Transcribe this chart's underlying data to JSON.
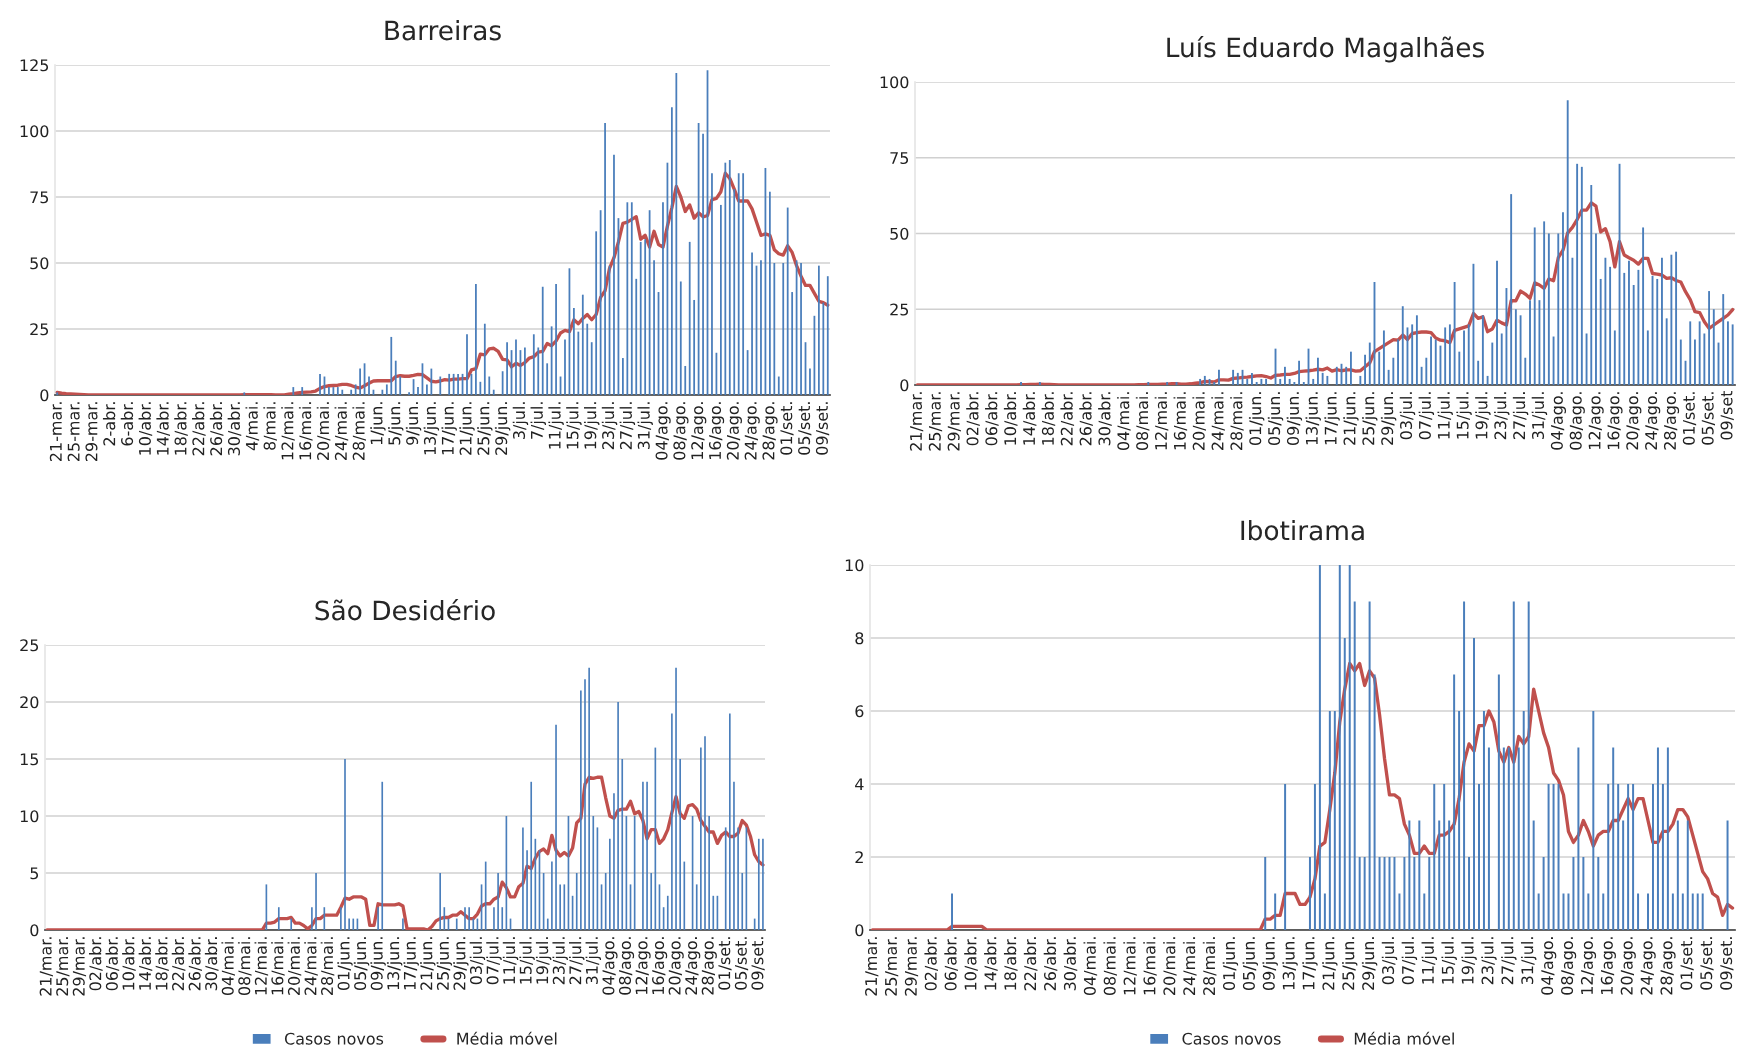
{
  "chart_data": [
    {
      "type": "bar",
      "title": "Barreiras",
      "grid": "y",
      "ylim": [
        0,
        125
      ],
      "yticks": [
        0,
        25,
        50,
        75,
        100,
        125
      ],
      "categories": [
        "21-mar.",
        null,
        null,
        null,
        "25-mar.",
        null,
        null,
        null,
        "29-mar.",
        null,
        null,
        null,
        "2-abr.",
        null,
        null,
        null,
        "6-abr.",
        null,
        null,
        null,
        "10/abr.",
        null,
        null,
        null,
        "14/abr.",
        null,
        null,
        null,
        "18/abr.",
        null,
        null,
        null,
        "22/abr.",
        null,
        null,
        null,
        "26/abr.",
        null,
        null,
        null,
        "30/abr.",
        null,
        null,
        null,
        "4/mai.",
        null,
        null,
        null,
        "8/mai.",
        null,
        null,
        null,
        "12/mai.",
        null,
        null,
        null,
        "16/mai.",
        null,
        null,
        null,
        "20/mai.",
        null,
        null,
        null,
        "24/mai.",
        null,
        null,
        null,
        "28/mai.",
        null,
        null,
        null,
        "1/jun.",
        null,
        null,
        null,
        "5/jun.",
        null,
        null,
        null,
        "9/jun.",
        null,
        null,
        null,
        "13/jun.",
        null,
        null,
        null,
        "17/jun.",
        null,
        null,
        null,
        "21/jun.",
        null,
        null,
        null,
        "25/jun.",
        null,
        null,
        null,
        "29/jun.",
        null,
        null,
        null,
        "3/jul.",
        null,
        null,
        null,
        "7/jul.",
        null,
        null,
        null,
        "11/jul.",
        null,
        null,
        null,
        "15/jul.",
        null,
        null,
        null,
        "19/jul.",
        null,
        null,
        null,
        "23/jul.",
        null,
        null,
        null,
        "27/jul.",
        null,
        null,
        null,
        "31/jul.",
        null,
        null,
        null,
        "04/ago.",
        null,
        null,
        null,
        "08/ago.",
        null,
        null,
        null,
        "12/ago.",
        null,
        null,
        null,
        "16/ago.",
        null,
        null,
        null,
        "20/ago.",
        null,
        null,
        null,
        "24/ago.",
        null,
        null,
        null,
        "28/ago.",
        null,
        null,
        null,
        "01/set.",
        null,
        null,
        null,
        "05/set.",
        null,
        null,
        null,
        "09/set.",
        null
      ],
      "series": [
        {
          "type": "bar",
          "color": "#4a7ebb",
          "values": [
            1,
            0,
            0,
            0,
            0,
            0,
            0,
            0,
            0,
            0,
            0,
            0,
            0,
            0,
            0,
            0,
            0,
            0,
            0,
            0,
            0,
            0,
            0,
            0,
            0,
            0,
            0,
            0,
            0,
            0,
            0,
            0,
            0,
            0,
            0,
            0,
            0,
            0,
            0,
            0,
            0,
            0,
            1,
            0,
            0,
            0,
            0,
            0,
            0,
            0,
            0,
            0,
            0,
            3,
            0,
            3,
            0,
            0,
            0,
            8,
            7,
            3,
            3,
            3,
            2,
            0,
            2,
            4,
            10,
            12,
            7,
            2,
            0,
            2,
            4,
            22,
            13,
            7,
            0,
            1,
            6,
            3,
            12,
            4,
            10,
            0,
            7,
            0,
            8,
            8,
            8,
            8,
            23,
            8,
            42,
            5,
            27,
            7,
            2,
            0,
            9,
            20,
            17,
            21,
            17,
            18,
            0,
            23,
            18,
            41,
            12,
            26,
            42,
            7,
            21,
            48,
            33,
            24,
            38,
            27,
            20,
            62,
            70,
            103,
            49,
            91,
            67,
            14,
            73,
            73,
            44,
            58,
            59,
            70,
            51,
            39,
            73,
            88,
            109,
            122,
            43,
            11,
            58,
            36,
            103,
            99,
            123,
            84,
            16,
            72,
            88,
            89,
            78,
            84,
            84,
            17,
            54,
            49,
            51,
            86,
            77,
            50,
            7,
            50,
            71,
            39,
            51,
            50,
            20,
            10,
            30,
            49,
            35,
            45
          ]
        },
        {
          "type": "line",
          "color": "#c0504d",
          "values": [
            1,
            0.7,
            0.5,
            0.4,
            0.3,
            0.2,
            0.1,
            0,
            0,
            0,
            0,
            0,
            0,
            0,
            0,
            0,
            0,
            0,
            0,
            0,
            0,
            0,
            0,
            0,
            0,
            0,
            0,
            0,
            0,
            0,
            0,
            0,
            0,
            0,
            0,
            0,
            0,
            0,
            0,
            0,
            0,
            0,
            0.1,
            0.1,
            0.1,
            0.1,
            0.1,
            0.1,
            0.1,
            0,
            0,
            0,
            0.3,
            0.5,
            0.8,
            1,
            1.1,
            1.2,
            1.5,
            2.5,
            3.2,
            3.5,
            3.6,
            3.7,
            4,
            4,
            3.6,
            3,
            2.6,
            3.5,
            4.5,
            5.3,
            5.4,
            5.4,
            5.4,
            5.4,
            7,
            7.3,
            7.1,
            7.1,
            7.4,
            7.8,
            7.7,
            6.5,
            5.2,
            5,
            5.3,
            5.8,
            5.6,
            6,
            6,
            6.2,
            6.2,
            9.5,
            10,
            15.5,
            15.2,
            17.5,
            17.7,
            16.5,
            13.5,
            13.3,
            10.7,
            12,
            11.2,
            12.3,
            14,
            14.5,
            16.2,
            16.5,
            19.5,
            18.7,
            20.5,
            23.5,
            24.5,
            24,
            28.5,
            27,
            29,
            30.5,
            28.5,
            30.5,
            37,
            39.5,
            48,
            52,
            58,
            65,
            65.5,
            66.5,
            67.5,
            59,
            60.5,
            56,
            62,
            57,
            56,
            64,
            71,
            79,
            75,
            69.5,
            72,
            67,
            69,
            67.5,
            68,
            74,
            74.5,
            77,
            84,
            82,
            78,
            73.5,
            73.5,
            73.5,
            70.5,
            65.5,
            60.5,
            61,
            60.5,
            55,
            53.5,
            53,
            56.5,
            54,
            49,
            45,
            41.5,
            41.5,
            38.5,
            35.5,
            35,
            34
          ]
        }
      ]
    },
    {
      "type": "bar",
      "title": "Luís Eduardo Magalhães",
      "grid": "y",
      "ylim": [
        0,
        100
      ],
      "yticks": [
        0,
        25,
        50,
        75,
        100
      ],
      "categories": [
        "21/mar.",
        null,
        null,
        null,
        "25/mar.",
        null,
        null,
        null,
        "29/mar.",
        null,
        null,
        null,
        "02/abr.",
        null,
        null,
        null,
        "06/abr.",
        null,
        null,
        null,
        "10/abr.",
        null,
        null,
        null,
        "14/abr.",
        null,
        null,
        null,
        "18/abr.",
        null,
        null,
        null,
        "22/abr.",
        null,
        null,
        null,
        "26/abr.",
        null,
        null,
        null,
        "30/abr.",
        null,
        null,
        null,
        "04/mai.",
        null,
        null,
        null,
        "08/mai.",
        null,
        null,
        null,
        "12/mai.",
        null,
        null,
        null,
        "16/mai.",
        null,
        null,
        null,
        "20/mai.",
        null,
        null,
        null,
        "24/mai.",
        null,
        null,
        null,
        "28/mai.",
        null,
        null,
        null,
        "01/jun.",
        null,
        null,
        null,
        "05/jun.",
        null,
        null,
        null,
        "09/jun.",
        null,
        null,
        null,
        "13/jun.",
        null,
        null,
        null,
        "17/jun.",
        null,
        null,
        null,
        "21/jun.",
        null,
        null,
        null,
        "25/jun.",
        null,
        null,
        null,
        "29/jun.",
        null,
        null,
        null,
        "03/jul.",
        null,
        null,
        null,
        "07/jul.",
        null,
        null,
        null,
        "11/jul.",
        null,
        null,
        null,
        "15/jul.",
        null,
        null,
        null,
        "19/jul.",
        null,
        null,
        null,
        "23/jul.",
        null,
        null,
        null,
        "27/jul.",
        null,
        null,
        null,
        "31/jul.",
        null,
        null,
        null,
        "04/ago.",
        null,
        null,
        null,
        "08/ago.",
        null,
        null,
        null,
        "12/ago.",
        null,
        null,
        null,
        "16/ago.",
        null,
        null,
        null,
        "20/ago.",
        null,
        null,
        null,
        "24/ago.",
        null,
        null,
        null,
        "28/ago.",
        null,
        null,
        null,
        "01/set.",
        null,
        null,
        null,
        "05/set.",
        null,
        null,
        null,
        "09/set",
        null
      ],
      "series": [
        {
          "type": "bar",
          "color": "#4a7ebb",
          "values": [
            0,
            0,
            0,
            0,
            0,
            0,
            0,
            0,
            0,
            0,
            0,
            0,
            0,
            0,
            0,
            0,
            0,
            0,
            0,
            0,
            0,
            0,
            1,
            0,
            0,
            0,
            1,
            0,
            0,
            0,
            0,
            0,
            0,
            0,
            0,
            0,
            0,
            0,
            0,
            0,
            0,
            0,
            0,
            0,
            0,
            0,
            0,
            0,
            0,
            1,
            0,
            0,
            0,
            1,
            0,
            1,
            0,
            0,
            0,
            0,
            2,
            3,
            2,
            1,
            5,
            0,
            0,
            5,
            4,
            5,
            2,
            4,
            1,
            2,
            2,
            0,
            12,
            2,
            6,
            2,
            1,
            8,
            1,
            12,
            2,
            9,
            4,
            3,
            0,
            6,
            7,
            6,
            11,
            0,
            3,
            10,
            14,
            34,
            11,
            18,
            5,
            9,
            15,
            26,
            19,
            20,
            23,
            6,
            9,
            16,
            15,
            13,
            19,
            20,
            34,
            11,
            18,
            20,
            40,
            8,
            23,
            3,
            14,
            41,
            17,
            32,
            63,
            25,
            23,
            9,
            28,
            52,
            28,
            54,
            50,
            16,
            50,
            57,
            94,
            42,
            73,
            72,
            17,
            66,
            50,
            35,
            42,
            39,
            18,
            73,
            37,
            41,
            33,
            38,
            52,
            18,
            36,
            35,
            42,
            22,
            43,
            44,
            15,
            8,
            21,
            15,
            21,
            17,
            31,
            25,
            14,
            30,
            21,
            20
          ]
        },
        {
          "type": "line",
          "color": "#c0504d",
          "values": [
            0,
            0,
            0,
            0,
            0,
            0,
            0,
            0,
            0,
            0,
            0,
            0,
            0,
            0,
            0,
            0,
            0,
            0,
            0,
            0,
            0,
            0,
            0.1,
            0.1,
            0.2,
            0.2,
            0.3,
            0.2,
            0.2,
            0.1,
            0,
            0,
            0,
            0,
            0,
            0,
            0,
            0,
            0,
            0,
            0,
            0,
            0,
            0,
            0,
            0,
            0,
            0.1,
            0.1,
            0.2,
            0.2,
            0.2,
            0.3,
            0.3,
            0.4,
            0.4,
            0.3,
            0.3,
            0.4,
            0.6,
            0.8,
            1.2,
            1.1,
            1,
            1.7,
            1.7,
            1.6,
            2.2,
            2.3,
            2.5,
            2.6,
            2.8,
            3,
            3.1,
            2.8,
            2.3,
            3.2,
            3.3,
            3.5,
            3.5,
            3.8,
            4.4,
            4.6,
            4.7,
            4.9,
            5.2,
            5,
            5.6,
            4.6,
            5.1,
            4.7,
            5,
            5,
            4.6,
            4.7,
            6,
            7.3,
            11,
            12,
            13,
            14,
            15,
            14.8,
            16.5,
            15,
            17,
            17.3,
            17.5,
            17.5,
            17.3,
            15.5,
            14.8,
            14.6,
            14,
            18,
            18.5,
            19,
            19.5,
            23.6,
            22,
            22.5,
            17.6,
            18.5,
            21.4,
            20.5,
            19.8,
            27.8,
            27.8,
            31,
            30,
            28.6,
            33.7,
            33,
            31.9,
            35,
            34.4,
            42,
            44.5,
            50.2,
            52,
            54.6,
            57.7,
            57.7,
            60.1,
            59,
            50.5,
            51.6,
            47.3,
            39,
            47.3,
            42.9,
            42,
            41.2,
            39.9,
            41.8,
            41.8,
            36.8,
            36.6,
            36.3,
            35.2,
            35.4,
            34.5,
            34,
            30.8,
            28.2,
            24.2,
            23.9,
            20.9,
            18.7,
            19.8,
            20.9,
            22,
            23.1,
            24.9
          ]
        }
      ]
    },
    {
      "type": "bar",
      "title": "São Desidério",
      "grid": "y",
      "legend": "bottom",
      "ylim": [
        0,
        25
      ],
      "yticks": [
        0,
        5,
        10,
        15,
        20,
        25
      ],
      "categories": [
        "21/mar.",
        null,
        null,
        null,
        "25/mar.",
        null,
        null,
        null,
        "29/mar.",
        null,
        null,
        null,
        "02/abr.",
        null,
        null,
        null,
        "06/abr.",
        null,
        null,
        null,
        "10/abr.",
        null,
        null,
        null,
        "14/abr.",
        null,
        null,
        null,
        "18/abr.",
        null,
        null,
        null,
        "22/abr.",
        null,
        null,
        null,
        "26/abr.",
        null,
        null,
        null,
        "30/abr.",
        null,
        null,
        null,
        "04/mai.",
        null,
        null,
        null,
        "08/mai.",
        null,
        null,
        null,
        "12/mai.",
        null,
        null,
        null,
        "16/mai.",
        null,
        null,
        null,
        "20/mai.",
        null,
        null,
        null,
        "24/mai.",
        null,
        null,
        null,
        "28/mai.",
        null,
        null,
        null,
        "01/jun.",
        null,
        null,
        null,
        "05/jun.",
        null,
        null,
        null,
        "09/jun.",
        null,
        null,
        null,
        "13/jun.",
        null,
        null,
        null,
        "17/jun.",
        null,
        null,
        null,
        "21/jun.",
        null,
        null,
        null,
        "25/jun.",
        null,
        null,
        null,
        "29/jun.",
        null,
        null,
        null,
        "03/jul.",
        null,
        null,
        null,
        "07/jul.",
        null,
        null,
        null,
        "11/jul.",
        null,
        null,
        null,
        "15/jul.",
        null,
        null,
        null,
        "19/jul.",
        null,
        null,
        null,
        "23/jul.",
        null,
        null,
        null,
        "27/jul.",
        null,
        null,
        null,
        "31/jul.",
        null,
        null,
        null,
        "04/ago.",
        null,
        null,
        null,
        "08/ago.",
        null,
        null,
        null,
        "12/ago.",
        null,
        null,
        null,
        "16/ago.",
        null,
        null,
        null,
        "20/ago.",
        null,
        null,
        null,
        "24/ago.",
        null,
        null,
        null,
        "28/ago.",
        null,
        null,
        null,
        "01/set.",
        null,
        null,
        null,
        "05/set.",
        null,
        null,
        null,
        "09/set.",
        null
      ],
      "series": [
        {
          "name": "Casos novos",
          "type": "bar",
          "color": "#4a7ebb",
          "values": [
            0,
            0,
            0,
            0,
            0,
            0,
            0,
            0,
            0,
            0,
            0,
            0,
            0,
            0,
            0,
            0,
            0,
            0,
            0,
            0,
            0,
            0,
            0,
            0,
            0,
            0,
            0,
            0,
            0,
            0,
            0,
            0,
            0,
            0,
            0,
            0,
            0,
            0,
            0,
            0,
            0,
            0,
            0,
            0,
            0,
            0,
            0,
            0,
            0,
            0,
            0,
            0,
            0,
            4,
            0,
            0,
            2,
            0,
            0,
            1,
            0,
            0,
            0,
            0,
            2,
            5,
            0,
            2,
            0,
            0,
            0,
            2,
            15,
            1,
            1,
            1,
            0,
            0,
            0,
            0,
            2,
            13,
            0,
            0,
            0,
            0,
            1,
            0,
            0,
            0,
            0,
            0,
            0,
            0,
            0,
            5,
            2,
            1,
            0,
            1,
            0,
            2,
            2,
            1,
            1,
            4,
            6,
            0,
            2,
            5,
            2,
            10,
            1,
            0,
            0,
            9,
            7,
            13,
            8,
            7,
            5,
            1,
            6,
            18,
            4,
            4,
            10,
            3,
            5,
            21,
            22,
            23,
            10,
            9,
            4,
            5,
            8,
            12,
            20,
            15,
            10,
            4,
            10,
            0,
            13,
            13,
            5,
            16,
            4,
            2,
            3,
            19,
            23,
            15,
            6,
            0,
            10,
            4,
            16,
            17,
            10,
            3,
            3,
            0,
            9,
            19,
            13,
            9,
            5,
            9,
            0,
            1,
            8,
            8
          ]
        },
        {
          "name": "Média móvel",
          "type": "line",
          "color": "#c0504d",
          "values": [
            0,
            0,
            0,
            0,
            0,
            0,
            0,
            0,
            0,
            0,
            0,
            0,
            0,
            0,
            0,
            0,
            0,
            0,
            0,
            0,
            0,
            0,
            0,
            0,
            0,
            0,
            0,
            0,
            0,
            0,
            0,
            0,
            0,
            0,
            0,
            0,
            0,
            0,
            0,
            0,
            0,
            0,
            0,
            0,
            0,
            0,
            0,
            0,
            0,
            0,
            0,
            0,
            0,
            0.6,
            0.6,
            0.7,
            1,
            1,
            1,
            1.1,
            0.6,
            0.6,
            0.4,
            0.1,
            0.4,
            1,
            1,
            1.3,
            1.3,
            1.3,
            1.3,
            2,
            2.8,
            2.7,
            2.9,
            2.9,
            2.9,
            2.7,
            0.4,
            0.4,
            2.3,
            2.2,
            2.2,
            2.2,
            2.2,
            2.3,
            2.1,
            0.1,
            0.1,
            0.1,
            0.1,
            0.1,
            0,
            0.3,
            0.8,
            1,
            1.1,
            1.1,
            1.3,
            1.3,
            1.6,
            1.3,
            1,
            1,
            1.4,
            2.1,
            2.3,
            2.3,
            2.7,
            2.9,
            4.2,
            3.7,
            2.9,
            2.9,
            3.8,
            4.1,
            5.6,
            5.4,
            6.3,
            6.9,
            7.1,
            6.7,
            8.3,
            7,
            6.5,
            6.8,
            6.5,
            7.2,
            9.4,
            9.8,
            12.8,
            13.4,
            13.3,
            13.4,
            13.4,
            11.6,
            10,
            9.8,
            10.5,
            10.6,
            10.6,
            11.3,
            10.2,
            10.4,
            9.6,
            8,
            8.8,
            8.8,
            7.6,
            8,
            8.8,
            10.3,
            11.7,
            10.2,
            9.8,
            10.9,
            11,
            10.6,
            9.6,
            9.1,
            8.6,
            8.6,
            7.6,
            8.3,
            8.6,
            8.2,
            8.2,
            8.5,
            9.6,
            9.2,
            8.2,
            6.6,
            6,
            5.7
          ]
        }
      ]
    },
    {
      "type": "bar",
      "title": "Ibotirama",
      "grid": "y",
      "legend": "bottom",
      "ylim": [
        0,
        10
      ],
      "yticks": [
        0,
        2,
        4,
        6,
        8,
        10
      ],
      "categories": [
        "21/mar.",
        null,
        null,
        null,
        "25/mar.",
        null,
        null,
        null,
        "29/mar.",
        null,
        null,
        null,
        "02/abr.",
        null,
        null,
        null,
        "06/abr.",
        null,
        null,
        null,
        "10/abr.",
        null,
        null,
        null,
        "14/abr.",
        null,
        null,
        null,
        "18/abr.",
        null,
        null,
        null,
        "22/abr.",
        null,
        null,
        null,
        "26/abr.",
        null,
        null,
        null,
        "30/abr.",
        null,
        null,
        null,
        "04/mai.",
        null,
        null,
        null,
        "08/mai.",
        null,
        null,
        null,
        "12/mai.",
        null,
        null,
        null,
        "16/mai.",
        null,
        null,
        null,
        "20/mai.",
        null,
        null,
        null,
        "24/mai.",
        null,
        null,
        null,
        "28/mai.",
        null,
        null,
        null,
        "01/jun.",
        null,
        null,
        null,
        "05/jun.",
        null,
        null,
        null,
        "09/jun.",
        null,
        null,
        null,
        "13/jun.",
        null,
        null,
        null,
        "17/jun.",
        null,
        null,
        null,
        "21/jun.",
        null,
        null,
        null,
        "25/jun.",
        null,
        null,
        null,
        "29/jun.",
        null,
        null,
        null,
        "03/jul.",
        null,
        null,
        null,
        "07/jul.",
        null,
        null,
        null,
        "11/jul.",
        null,
        null,
        null,
        "15/jul.",
        null,
        null,
        null,
        "19/jul.",
        null,
        null,
        null,
        "23/jul.",
        null,
        null,
        null,
        "27/jul.",
        null,
        null,
        null,
        "31/jul.",
        null,
        null,
        null,
        "04/ago.",
        null,
        null,
        null,
        "08/ago.",
        null,
        null,
        null,
        "12/ago.",
        null,
        null,
        null,
        "16/ago.",
        null,
        null,
        null,
        "20/ago.",
        null,
        null,
        null,
        "24/ago.",
        null,
        null,
        null,
        "28/ago.",
        null,
        null,
        null,
        "01/set.",
        null,
        null,
        null,
        "05/set.",
        null,
        null,
        null,
        "09/set.",
        null
      ],
      "series": [
        {
          "name": "Casos novos",
          "type": "bar",
          "color": "#4a7ebb",
          "values": [
            0,
            0,
            0,
            0,
            0,
            0,
            0,
            0,
            0,
            0,
            0,
            0,
            0,
            0,
            0,
            0,
            1,
            0,
            0,
            0,
            0,
            0,
            0,
            0,
            0,
            0,
            0,
            0,
            0,
            0,
            0,
            0,
            0,
            0,
            0,
            0,
            0,
            0,
            0,
            0,
            0,
            0,
            0,
            0,
            0,
            0,
            0,
            0,
            0,
            0,
            0,
            0,
            0,
            0,
            0,
            0,
            0,
            0,
            0,
            0,
            0,
            0,
            0,
            0,
            0,
            0,
            0,
            0,
            0,
            0,
            0,
            0,
            0,
            0,
            0,
            0,
            0,
            0,
            0,
            2,
            0,
            1,
            0,
            4,
            0,
            0,
            0,
            0,
            2,
            4,
            10,
            1,
            6,
            6,
            10,
            8,
            10,
            9,
            2,
            2,
            9,
            7,
            2,
            2,
            2,
            2,
            1,
            2,
            3,
            2,
            3,
            1,
            2,
            4,
            3,
            4,
            3,
            7,
            6,
            9,
            2,
            8,
            4,
            6,
            5,
            0,
            7,
            5,
            5,
            9,
            5,
            6,
            9,
            3,
            1,
            2,
            4,
            4,
            4,
            1,
            1,
            2,
            5,
            2,
            1,
            6,
            2,
            1,
            4,
            5,
            4,
            3,
            4,
            4,
            1,
            0,
            1,
            4,
            5,
            4,
            5,
            1,
            3,
            1,
            3,
            1,
            1,
            1,
            0,
            0,
            0,
            0,
            3,
            0
          ]
        },
        {
          "name": "Média móvel",
          "type": "line",
          "color": "#c0504d",
          "values": [
            0,
            0,
            0,
            0,
            0,
            0,
            0,
            0,
            0,
            0,
            0,
            0,
            0,
            0,
            0,
            0,
            0.1,
            0.1,
            0.1,
            0.1,
            0.1,
            0.1,
            0.1,
            0,
            0,
            0,
            0,
            0,
            0,
            0,
            0,
            0,
            0,
            0,
            0,
            0,
            0,
            0,
            0,
            0,
            0,
            0,
            0,
            0,
            0,
            0,
            0,
            0,
            0,
            0,
            0,
            0,
            0,
            0,
            0,
            0,
            0,
            0,
            0,
            0,
            0,
            0,
            0,
            0,
            0,
            0,
            0,
            0,
            0,
            0,
            0,
            0,
            0,
            0,
            0,
            0,
            0,
            0,
            0,
            0.3,
            0.3,
            0.4,
            0.4,
            1,
            1,
            1,
            0.7,
            0.7,
            0.9,
            1.4,
            2.3,
            2.4,
            3.3,
            4.3,
            5.7,
            6.6,
            7.3,
            7.1,
            7.3,
            6.7,
            7.1,
            6.9,
            5.9,
            4.7,
            3.7,
            3.7,
            3.6,
            2.9,
            2.6,
            2.1,
            2.1,
            2.3,
            2.1,
            2.1,
            2.6,
            2.6,
            2.7,
            2.9,
            3.6,
            4.6,
            5.1,
            4.9,
            5.6,
            5.6,
            6,
            5.7,
            4.9,
            4.6,
            5,
            4.6,
            5.3,
            5.1,
            5.3,
            6.6,
            6,
            5.4,
            5,
            4.3,
            4.1,
            3.7,
            2.7,
            2.4,
            2.6,
            3,
            2.7,
            2.3,
            2.6,
            2.7,
            2.7,
            3,
            3,
            3.3,
            3.6,
            3.3,
            3.6,
            3.6,
            3,
            2.4,
            2.4,
            2.7,
            2.7,
            2.9,
            3.3,
            3.3,
            3.1,
            2.6,
            2.1,
            1.6,
            1.4,
            1,
            0.9,
            0.4,
            0.7,
            0.6
          ]
        }
      ]
    }
  ]
}
